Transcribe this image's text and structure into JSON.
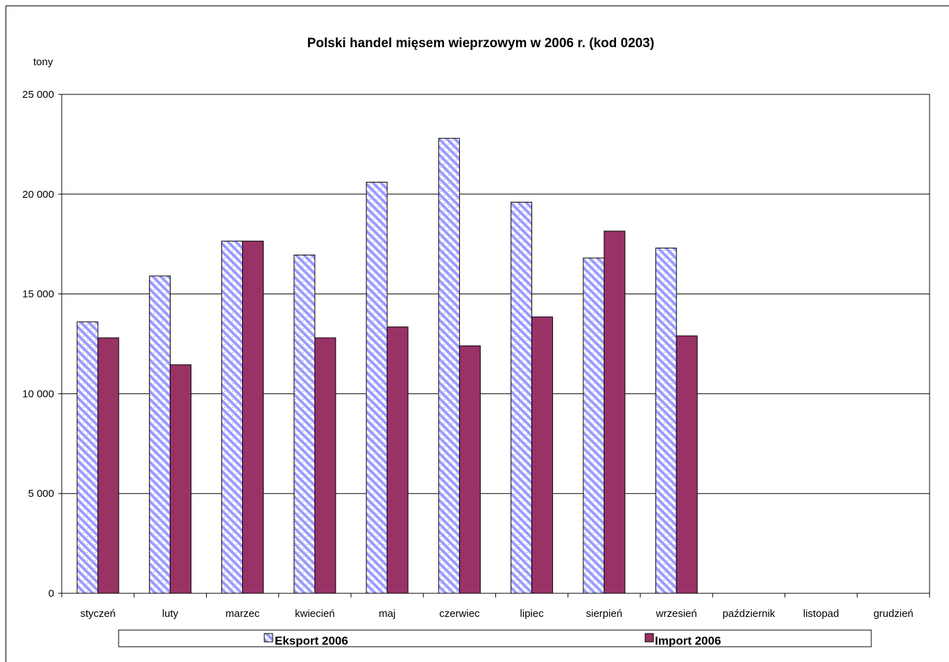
{
  "chart_data": {
    "type": "bar",
    "title": "Polski handel mięsem wieprzowym w 2006 r. (kod 0203)",
    "ylabel": "tony",
    "xlabel": "",
    "ylim": [
      0,
      25000
    ],
    "yticks": [
      0,
      5000,
      10000,
      15000,
      20000,
      25000
    ],
    "ytick_labels": [
      "0",
      "5 000",
      "10 000",
      "15 000",
      "20 000",
      "25 000"
    ],
    "grid": true,
    "legend_position": "bottom",
    "categories": [
      "styczeń",
      "luty",
      "marzec",
      "kwiecień",
      "maj",
      "czerwiec",
      "lipiec",
      "sierpień",
      "wrzesień",
      "październik",
      "listopad",
      "grudzień"
    ],
    "series": [
      {
        "name": "Eksport 2006",
        "color": "#9999ff",
        "pattern": "diagonal-hatch",
        "values": [
          13600,
          15900,
          17650,
          16950,
          20600,
          22800,
          19600,
          16800,
          17300,
          null,
          null,
          null
        ]
      },
      {
        "name": "Import 2006",
        "color": "#993366",
        "pattern": "solid",
        "values": [
          12800,
          11450,
          17650,
          12800,
          13350,
          12400,
          13850,
          18150,
          12900,
          null,
          null,
          null
        ]
      }
    ]
  }
}
